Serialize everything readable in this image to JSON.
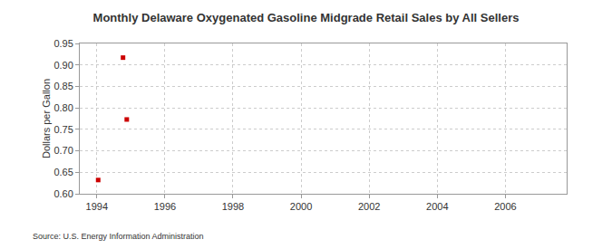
{
  "chart_data": {
    "type": "scatter",
    "title": "Monthly Delaware Oxygenated Gasoline Midgrade Retail Sales by All Sellers",
    "y_label": "Dollars per Gallon",
    "source": "Source: U.S. Energy Information Administration",
    "x": [
      1994.04,
      1994.77,
      1994.88
    ],
    "values": [
      0.632,
      0.917,
      0.773
    ],
    "color": "#cc0000",
    "marker": "square",
    "xlim": [
      1993.5,
      2007.8
    ],
    "xticks": [
      1994,
      1996,
      1998,
      2000,
      2002,
      2004,
      2006
    ],
    "ylim": [
      0.6,
      0.95
    ],
    "yticks": [
      {
        "value": 0.6,
        "label": "0.60"
      },
      {
        "value": 0.65,
        "label": "0.65"
      },
      {
        "value": 0.7,
        "label": "0.70"
      },
      {
        "value": 0.75,
        "label": "0.75"
      },
      {
        "value": 0.8,
        "label": "0.80"
      },
      {
        "value": 0.85,
        "label": "0.85"
      },
      {
        "value": 0.9,
        "label": "0.90"
      },
      {
        "value": 0.95,
        "label": "0.95"
      }
    ],
    "grid": true
  }
}
